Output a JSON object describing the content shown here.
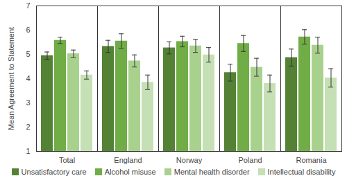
{
  "chart_data": {
    "type": "bar",
    "y_label": "Mean Agreement to Statement",
    "categories": [
      "Total",
      "England",
      "Norway",
      "Poland",
      "Romania"
    ],
    "series": [
      {
        "name": "Unsatisfactory care",
        "color": "#548235",
        "values": [
          4.95,
          5.33,
          5.27,
          4.25,
          4.87
        ],
        "errors": [
          0.15,
          0.25,
          0.25,
          0.35,
          0.35
        ]
      },
      {
        "name": "Alcohol misuse",
        "color": "#70ad47",
        "values": [
          5.58,
          5.55,
          5.53,
          5.45,
          5.72
        ],
        "errors": [
          0.13,
          0.3,
          0.22,
          0.33,
          0.3
        ]
      },
      {
        "name": "Mental health disorder",
        "color": "#a9d18e",
        "values": [
          5.03,
          4.73,
          5.35,
          4.47,
          5.38
        ],
        "errors": [
          0.15,
          0.25,
          0.27,
          0.37,
          0.33
        ]
      },
      {
        "name": "Intellectual disability",
        "color": "#c5e0b4",
        "values": [
          4.15,
          3.85,
          4.98,
          3.8,
          4.03
        ],
        "errors": [
          0.17,
          0.3,
          0.3,
          0.35,
          0.38
        ]
      }
    ],
    "ylim": [
      1,
      7
    ],
    "yticks": [
      1,
      2,
      3,
      4,
      5,
      6,
      7
    ],
    "grid": false,
    "legend": "bottom"
  }
}
